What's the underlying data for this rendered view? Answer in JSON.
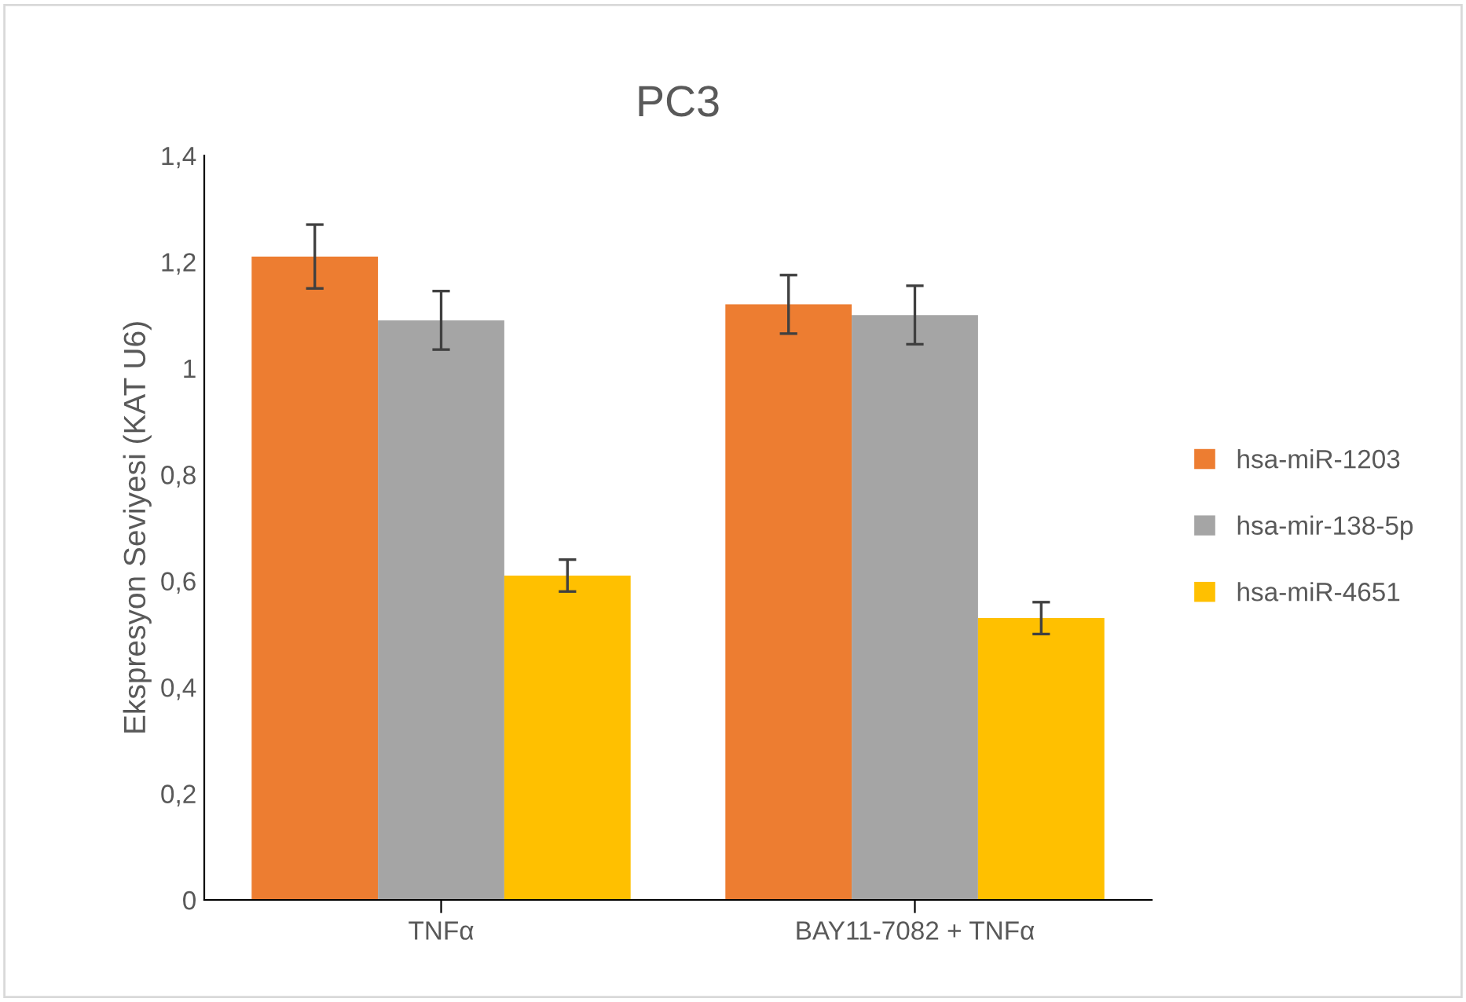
{
  "chart_data": {
    "type": "bar",
    "title": "PC3",
    "ylabel": "Ekspresyon Seviyesi (KAT U6)",
    "categories": [
      "TNFα",
      "BAY11-7082 + TNFα"
    ],
    "series": [
      {
        "name": "hsa-miR-1203",
        "color": "#ed7d31",
        "values": [
          1.21,
          1.12
        ],
        "errors": [
          0.06,
          0.055
        ]
      },
      {
        "name": "hsa-mir-138-5p",
        "color": "#a5a5a5",
        "values": [
          1.09,
          1.1
        ],
        "errors": [
          0.055,
          0.055
        ]
      },
      {
        "name": "hsa-miR-4651",
        "color": "#ffc000",
        "values": [
          0.61,
          0.53
        ],
        "errors": [
          0.03,
          0.03
        ]
      }
    ],
    "ylim": [
      0,
      1.4
    ],
    "yticks": [
      0,
      {
        "value": 0.2,
        "label": "0,2"
      },
      {
        "value": 0.4,
        "label": "0,4"
      },
      {
        "value": 0.6,
        "label": "0,6"
      },
      {
        "value": 0.8,
        "label": "0,8"
      },
      1,
      {
        "value": 1.2,
        "label": "1,2"
      },
      {
        "value": 1.4,
        "label": "1,4"
      }
    ],
    "grid": false,
    "legend": "right"
  }
}
